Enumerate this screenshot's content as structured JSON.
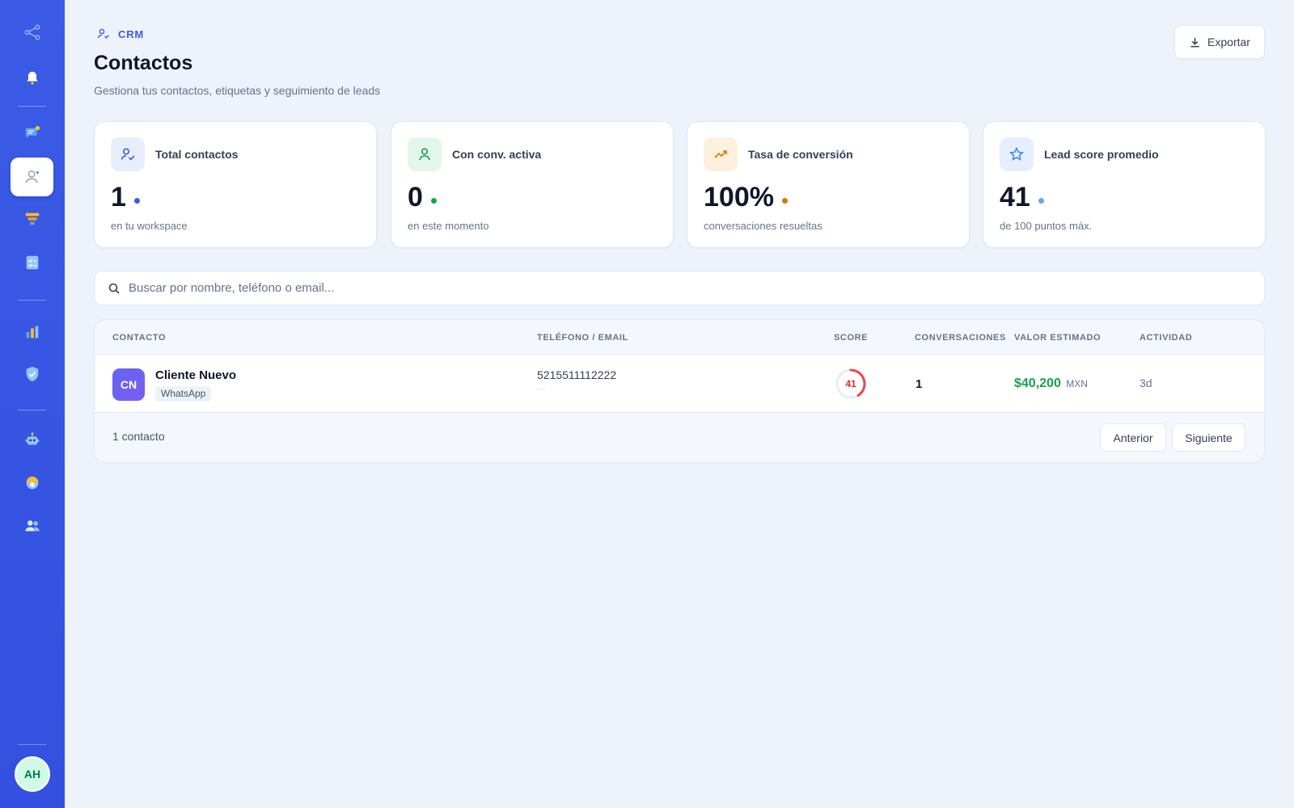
{
  "sidebar": {
    "items": [
      {
        "icon": "share-nodes-icon"
      },
      {
        "icon": "bell-icon"
      },
      {
        "icon": "chat-bubble-icon"
      },
      {
        "icon": "contact-user-icon",
        "active": true
      },
      {
        "icon": "funnel-icon"
      },
      {
        "icon": "checklist-icon"
      },
      {
        "icon": "bar-chart-icon"
      },
      {
        "icon": "shield-check-icon"
      },
      {
        "icon": "robot-icon"
      },
      {
        "icon": "support-agent-icon"
      },
      {
        "icon": "team-users-icon"
      }
    ],
    "avatar_initials": "AH"
  },
  "header": {
    "breadcrumb": "CRM",
    "title": "Contactos",
    "subtitle": "Gestiona tus contactos, etiquetas y seguimiento de leads",
    "export_label": "Exportar"
  },
  "stats": [
    {
      "label": "Total contactos",
      "value": "1",
      "sub": "en tu workspace",
      "icon": "user-check-icon",
      "color": "#3b5be6",
      "bg": "#e8eefc"
    },
    {
      "label": "Con conv. activa",
      "value": "0",
      "sub": "en este momento",
      "icon": "user-icon",
      "color": "#16a34a",
      "bg": "#e3f6ea"
    },
    {
      "label": "Tasa de conversión",
      "value": "100%",
      "sub": "conversaciones resueltas",
      "icon": "trending-up-icon",
      "color": "#d97706",
      "bg": "#fdf0dc"
    },
    {
      "label": "Lead score promedio",
      "value": "41",
      "sub": "de 100 puntos máx.",
      "icon": "star-icon",
      "color": "#3b82f6",
      "bg": "#e6effd"
    }
  ],
  "search": {
    "placeholder": "Buscar por nombre, teléfono o email..."
  },
  "table": {
    "columns": [
      "CONTACTO",
      "TELÉFONO / EMAIL",
      "SCORE",
      "CONVERSACIONES",
      "VALOR ESTIMADO",
      "ACTIVIDAD"
    ],
    "rows": [
      {
        "initials": "CN",
        "name": "Cliente Nuevo",
        "channel": "WhatsApp",
        "phone": "5215511112222",
        "email": "—",
        "score": "41",
        "score_fraction": 0.41,
        "conversations": "1",
        "value": "$40,200",
        "currency": "MXN",
        "activity": "3d"
      }
    ],
    "count_label": "1 contacto",
    "prev_label": "Anterior",
    "next_label": "Siguiente"
  },
  "colors": {
    "sidebar": "#3b5be6",
    "accent": "#3b5be6",
    "score_ring": "#ef4444",
    "value_green": "#16a34a"
  }
}
